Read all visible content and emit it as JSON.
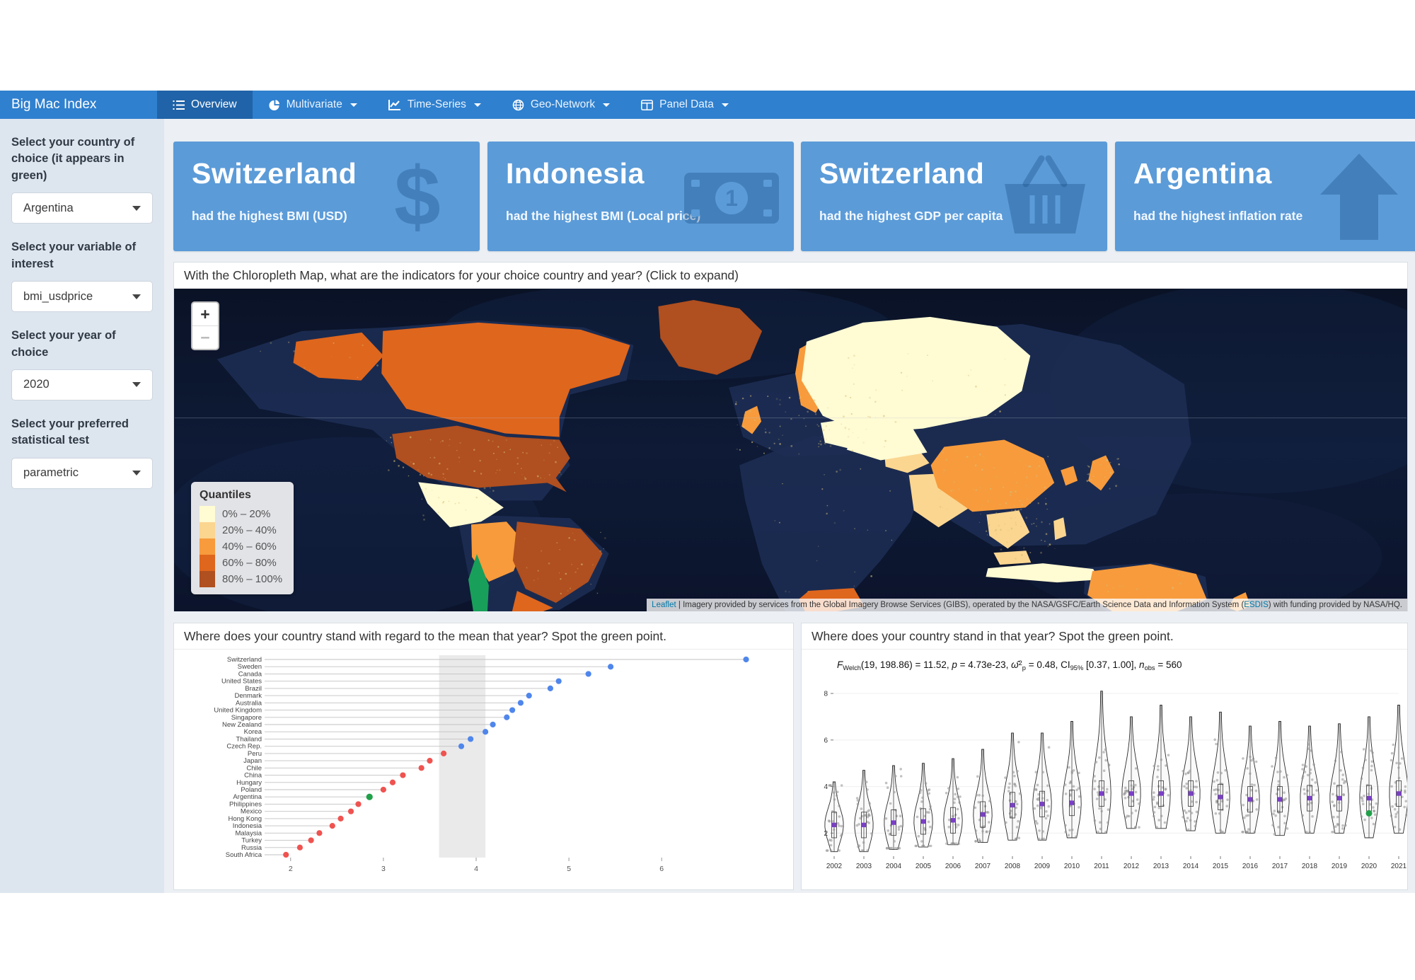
{
  "navbar": {
    "brand": "Big Mac Index",
    "tabs": [
      {
        "label": "Overview",
        "icon": "list-icon",
        "active": true,
        "caret": false
      },
      {
        "label": "Multivariate",
        "icon": "pie-chart-icon",
        "active": false,
        "caret": true
      },
      {
        "label": "Time-Series",
        "icon": "line-chart-icon",
        "active": false,
        "caret": true
      },
      {
        "label": "Geo-Network",
        "icon": "globe-icon",
        "active": false,
        "caret": true
      },
      {
        "label": "Panel Data",
        "icon": "table-columns-icon",
        "active": false,
        "caret": true
      }
    ]
  },
  "sidebar": {
    "controls": [
      {
        "label": "Select your country of choice (it appears in green)",
        "value": "Argentina"
      },
      {
        "label": "Select your variable of interest",
        "value": "bmi_usdprice"
      },
      {
        "label": "Select your year of choice",
        "value": "2020"
      },
      {
        "label": "Select your preferred statistical test",
        "value": "parametric"
      }
    ]
  },
  "value_boxes": [
    {
      "title": "Switzerland",
      "subtitle": "had the highest BMI (USD)",
      "icon": "dollar-icon"
    },
    {
      "title": "Indonesia",
      "subtitle": "had the highest BMI (Local price)",
      "icon": "money-bill-icon"
    },
    {
      "title": "Switzerland",
      "subtitle": "had the highest GDP per capita",
      "icon": "basket-icon"
    },
    {
      "title": "Argentina",
      "subtitle": "had the highest inflation rate",
      "icon": "arrow-up-icon"
    }
  ],
  "map_panel": {
    "header": "With the Chloropleth Map, what are the indicators for your choice country and year? (Click to expand)",
    "zoom_in": "+",
    "zoom_out": "−",
    "selected_color": "#18a05a",
    "legend": {
      "title": "Quantiles",
      "items": [
        {
          "label": "0% – 20%",
          "color": "#fffbd3"
        },
        {
          "label": "20% – 40%",
          "color": "#fbd690"
        },
        {
          "label": "40% – 60%",
          "color": "#f79b3c"
        },
        {
          "label": "60% – 80%",
          "color": "#df661d"
        },
        {
          "label": "80% – 100%",
          "color": "#b04f1f"
        }
      ]
    },
    "attribution": {
      "link1": "Leaflet",
      "separator": " | ",
      "text_before": "Imagery provided by services from the Global Imagery Browse Services (GIBS), operated by the NASA/GSFC/Earth Science Data and Information System (",
      "link2": "ESDIS",
      "text_after": ") with funding provided by NASA/HQ."
    }
  },
  "chart_data": [
    {
      "type": "scatter",
      "panel_header": "Where does your country stand with regard to the mean that year? Spot the green point.",
      "categories": [
        "Switzerland",
        "Sweden",
        "Canada",
        "United States",
        "Brazil",
        "Denmark",
        "Australia",
        "United Kingdom",
        "Singapore",
        "New Zealand",
        "Korea",
        "Thailand",
        "Czech Rep.",
        "Peru",
        "Japan",
        "Chile",
        "China",
        "Hungary",
        "Poland",
        "Argentina",
        "Philippines",
        "Mexico",
        "Hong Kong",
        "Indonesia",
        "Malaysia",
        "Turkey",
        "Russia",
        "South Africa"
      ],
      "values": [
        6.91,
        5.45,
        5.21,
        4.89,
        4.8,
        4.57,
        4.48,
        4.39,
        4.33,
        4.18,
        4.1,
        3.94,
        3.84,
        3.65,
        3.5,
        3.41,
        3.21,
        3.1,
        3.0,
        2.85,
        2.73,
        2.65,
        2.54,
        2.45,
        2.31,
        2.22,
        2.1,
        1.95
      ],
      "groups": [
        "above",
        "above",
        "above",
        "above",
        "above",
        "above",
        "above",
        "above",
        "above",
        "above",
        "above",
        "above",
        "above",
        "below",
        "below",
        "below",
        "below",
        "below",
        "below",
        "selected",
        "below",
        "below",
        "below",
        "below",
        "below",
        "below",
        "below",
        "below"
      ],
      "colors": {
        "above": "#4f86ec",
        "below": "#ef5350",
        "selected": "#21a04a",
        "stem": "#c2c2c2",
        "band": "#d9d9d9"
      },
      "xticks": [
        2,
        3,
        4,
        5,
        6
      ],
      "xlim": [
        1.75,
        7.15
      ],
      "mean_band": [
        3.6,
        4.1
      ],
      "xlabel": "",
      "ylabel": ""
    },
    {
      "type": "violin",
      "panel_header": "Where does your country stand in that year? Spot the green point.",
      "stats_segments": [
        {
          "t": "F",
          "i": true
        },
        {
          "t": "Welch",
          "sub": true
        },
        {
          "t": "(19, 198.86) = 11.52, "
        },
        {
          "t": "p",
          "i": true
        },
        {
          "t": " = 4.73e-23, "
        },
        {
          "t": "ω̂",
          "i": true
        },
        {
          "t": "2",
          "sup": true
        },
        {
          "t": "p",
          "sub": true
        },
        {
          "t": " = 0.48, CI"
        },
        {
          "t": "95%",
          "sub": true
        },
        {
          "t": " [0.37, 1.00], "
        },
        {
          "t": "n",
          "i": true
        },
        {
          "t": "obs",
          "sub": true
        },
        {
          "t": " = 560"
        }
      ],
      "years": [
        2002,
        2003,
        2004,
        2005,
        2006,
        2007,
        2008,
        2009,
        2010,
        2011,
        2012,
        2013,
        2014,
        2015,
        2016,
        2017,
        2018,
        2019,
        2020,
        2021
      ],
      "means": [
        2.35,
        2.35,
        2.45,
        2.5,
        2.55,
        2.8,
        3.2,
        3.25,
        3.3,
        3.7,
        3.7,
        3.7,
        3.7,
        3.55,
        3.45,
        3.45,
        3.5,
        3.5,
        3.5,
        3.7
      ],
      "lo": [
        1.2,
        1.2,
        1.3,
        1.4,
        1.5,
        1.6,
        1.7,
        1.7,
        1.8,
        2.0,
        2.2,
        2.2,
        2.1,
        2.0,
        2.0,
        1.9,
        2.0,
        2.0,
        1.8,
        2.0
      ],
      "hi": [
        4.2,
        4.7,
        4.9,
        5.0,
        5.2,
        5.6,
        6.3,
        6.3,
        6.8,
        8.1,
        7.0,
        7.5,
        7.0,
        7.2,
        6.6,
        6.8,
        6.6,
        6.7,
        7.0,
        7.5
      ],
      "yticks": [
        2,
        4,
        6,
        8
      ],
      "ylim": [
        1.1,
        8.7
      ],
      "n_per_year": 28,
      "highlight": {
        "year": 2020,
        "value": 2.85,
        "color": "#21a04a"
      },
      "mean_color": "#7a3fc6",
      "jitter_color": "#8f8f8f",
      "outline_color": "#2a2a2a"
    }
  ]
}
